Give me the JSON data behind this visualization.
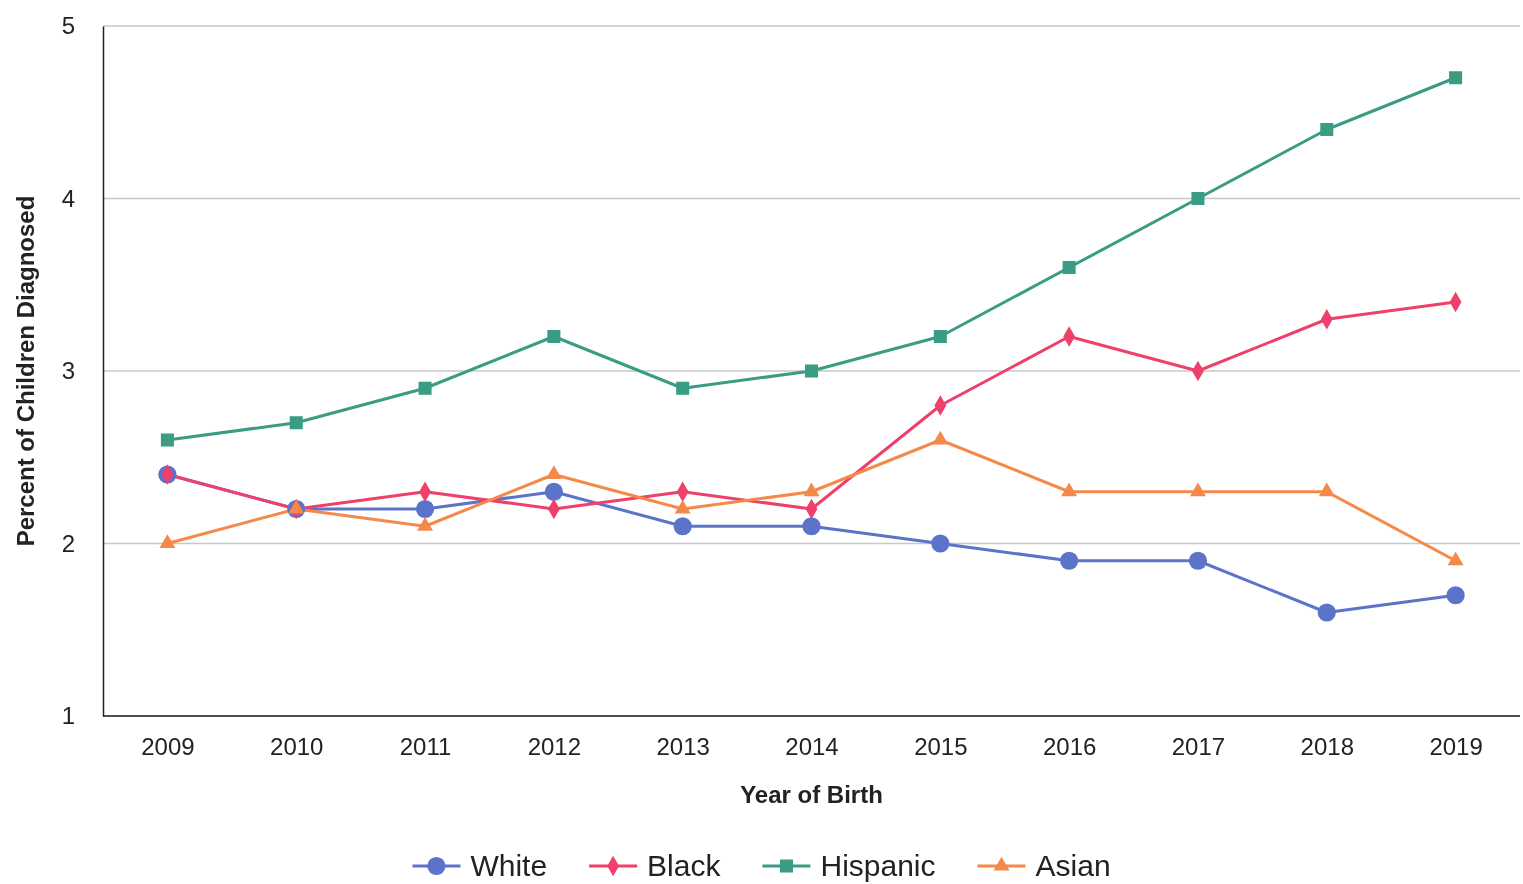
{
  "chart_data": {
    "type": "line",
    "xlabel": "Year of Birth",
    "ylabel": "Percent of Children Diagnosed",
    "categories": [
      "2009",
      "2010",
      "2011",
      "2012",
      "2013",
      "2014",
      "2015",
      "2016",
      "2017",
      "2018",
      "2019"
    ],
    "series": [
      {
        "name": "White",
        "color": "#5b74c9",
        "marker": "circle",
        "values": [
          2.4,
          2.2,
          2.2,
          2.3,
          2.1,
          2.1,
          2.0,
          1.9,
          1.9,
          1.6,
          1.7
        ]
      },
      {
        "name": "Black",
        "color": "#ef3f6b",
        "marker": "diamond",
        "values": [
          2.4,
          2.2,
          2.3,
          2.2,
          2.3,
          2.2,
          2.8,
          3.2,
          3.0,
          3.3,
          3.4
        ]
      },
      {
        "name": "Hispanic",
        "color": "#3a9c84",
        "marker": "square",
        "values": [
          2.6,
          2.7,
          2.9,
          3.2,
          2.9,
          3.0,
          3.2,
          3.6,
          4.0,
          4.4,
          4.7
        ]
      },
      {
        "name": "Asian",
        "color": "#f5894a",
        "marker": "triangle",
        "values": [
          2.0,
          2.2,
          2.1,
          2.4,
          2.2,
          2.3,
          2.6,
          2.3,
          2.3,
          2.3,
          1.9
        ]
      }
    ],
    "ylim": [
      1,
      5
    ],
    "yticks": [
      1,
      2,
      3,
      4,
      5
    ],
    "grid": "y",
    "legend": "bottom",
    "line_style": "solid"
  }
}
